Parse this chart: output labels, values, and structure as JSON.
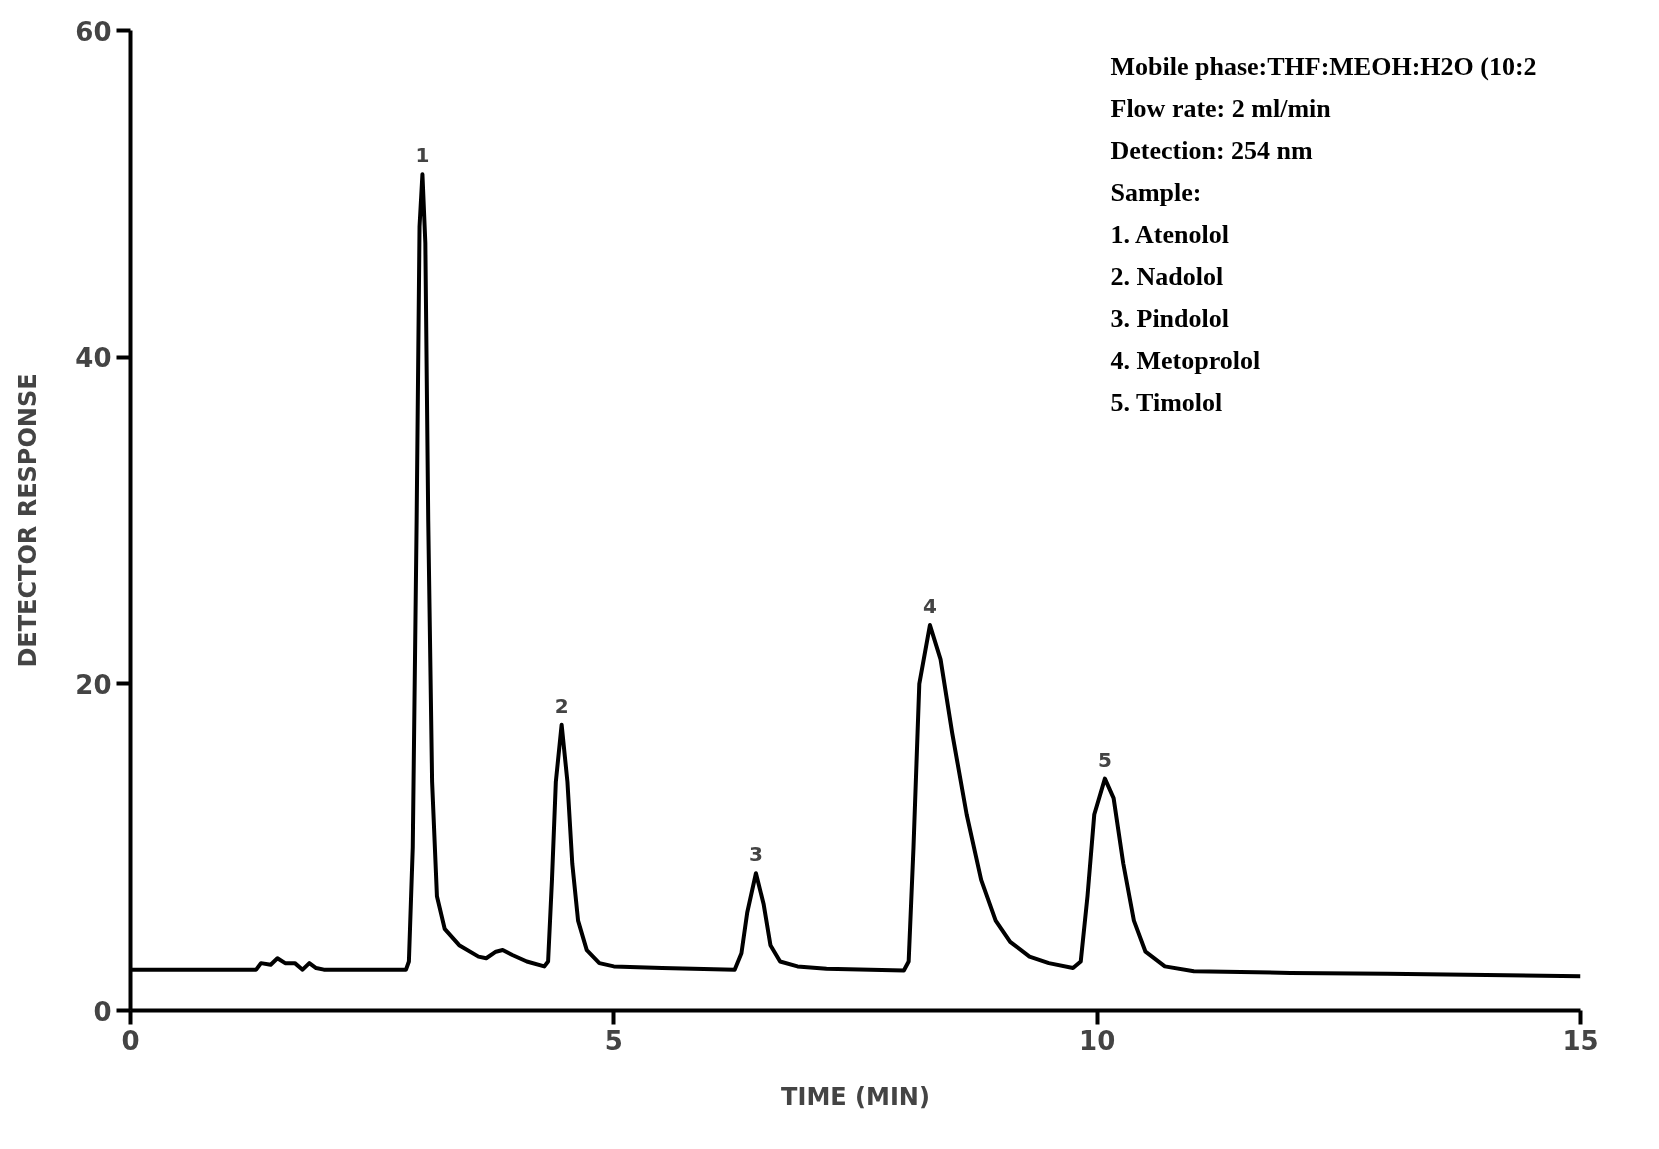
{
  "chart_data": {
    "type": "line",
    "xlabel": "TIME (MIN)",
    "ylabel": "DETECTOR RESPONSE",
    "xlim": [
      0,
      15
    ],
    "ylim": [
      0,
      60
    ],
    "xticks": [
      0,
      5,
      10,
      15
    ],
    "yticks": [
      0,
      20,
      40,
      60
    ],
    "grid": false,
    "marker": "none",
    "line_style": "solid",
    "series": [
      {
        "color": "#000000",
        "x": [
          0,
          1.3,
          1.35,
          1.45,
          1.52,
          1.6,
          1.7,
          1.78,
          1.85,
          1.92,
          2.0,
          2.85,
          2.88,
          2.92,
          2.96,
          2.99,
          3.02,
          3.05,
          3.08,
          3.12,
          3.17,
          3.25,
          3.4,
          3.6,
          3.68,
          3.78,
          3.85,
          3.95,
          4.1,
          4.28,
          4.32,
          4.36,
          4.4,
          4.46,
          4.52,
          4.57,
          4.63,
          4.72,
          4.85,
          5.0,
          5.5,
          6.25,
          6.32,
          6.38,
          6.47,
          6.55,
          6.62,
          6.72,
          6.9,
          7.2,
          8.0,
          8.05,
          8.1,
          8.16,
          8.27,
          8.38,
          8.5,
          8.65,
          8.8,
          8.95,
          9.1,
          9.3,
          9.5,
          9.75,
          9.83,
          9.9,
          9.97,
          10.08,
          10.17,
          10.27,
          10.38,
          10.5,
          10.7,
          11.0,
          12,
          13,
          15
        ],
        "values": [
          2.5,
          2.5,
          2.9,
          2.8,
          3.2,
          2.9,
          2.9,
          2.5,
          2.9,
          2.6,
          2.5,
          2.5,
          3,
          10,
          30,
          48,
          51.2,
          47,
          30,
          14,
          7,
          5,
          4,
          3.3,
          3.2,
          3.6,
          3.7,
          3.4,
          3.0,
          2.7,
          3,
          8,
          14,
          17.5,
          14,
          9,
          5.5,
          3.7,
          2.9,
          2.7,
          2.6,
          2.5,
          3.5,
          6,
          8.4,
          6.5,
          4,
          3,
          2.7,
          2.55,
          2.45,
          3,
          10,
          20,
          23.6,
          21.5,
          17,
          12,
          8,
          5.5,
          4.2,
          3.3,
          2.9,
          2.6,
          3,
          7,
          12,
          14.2,
          13,
          9,
          5.5,
          3.6,
          2.7,
          2.4,
          2.3,
          2.25,
          2.1
        ]
      }
    ],
    "annotations": [
      {
        "text": "1",
        "x": 3.02,
        "y": 51.2
      },
      {
        "text": "2",
        "x": 4.46,
        "y": 17.5
      },
      {
        "text": "3",
        "x": 6.47,
        "y": 8.4
      },
      {
        "text": "4",
        "x": 8.27,
        "y": 23.6
      },
      {
        "text": "5",
        "x": 10.08,
        "y": 14.2
      },
      "Mobile phase:THF:MEOH:H2O (10:2",
      "Flow rate: 2 ml/min",
      "Detection: 254 nm",
      "Sample:",
      "1. Atenolol",
      "2. Nadolol",
      "3. Pindolol",
      "4. Metoprolol",
      "5. Timolol"
    ]
  }
}
